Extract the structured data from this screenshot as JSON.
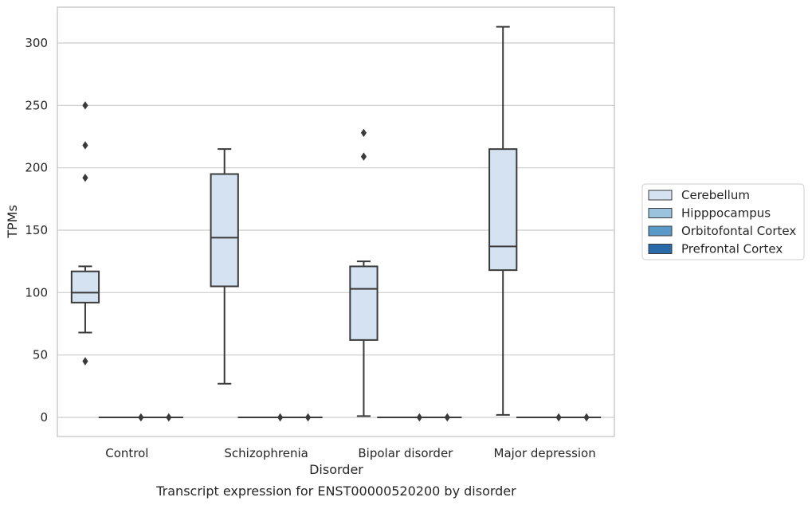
{
  "chart_data": {
    "type": "box",
    "caption": "Transcript expression for ENST00000520200 by disorder",
    "xlabel": "Disorder",
    "ylabel": "TPMs",
    "ylim": [
      -15,
      330
    ],
    "yticks": [
      0,
      50,
      100,
      150,
      200,
      250,
      300
    ],
    "grid": "horizontal",
    "legend_position": "right",
    "categories": [
      "Control",
      "Schizophrenia",
      "Bipolar disorder",
      "Major depression"
    ],
    "series": [
      {
        "name": "Cerebellum",
        "color": "#d4e2f1",
        "boxes": [
          {
            "whisker_low": 68,
            "q1": 92,
            "median": 100,
            "q3": 117,
            "whisker_high": 121,
            "outliers": [
              45,
              192,
              218,
              250
            ]
          },
          {
            "whisker_low": 27,
            "q1": 105,
            "median": 144,
            "q3": 195,
            "whisker_high": 215,
            "outliers": []
          },
          {
            "whisker_low": 1,
            "q1": 62,
            "median": 103,
            "q3": 121,
            "whisker_high": 125,
            "outliers": [
              209,
              228
            ]
          },
          {
            "whisker_low": 2,
            "q1": 118,
            "median": 137,
            "q3": 215,
            "whisker_high": 313,
            "outliers": []
          }
        ]
      },
      {
        "name": "Hipppocampus",
        "color": "#9ac3de",
        "boxes": [
          {
            "whisker_low": 0,
            "q1": 0,
            "median": 0,
            "q3": 0,
            "whisker_high": 0,
            "outliers": []
          },
          {
            "whisker_low": 0,
            "q1": 0,
            "median": 0,
            "q3": 0,
            "whisker_high": 0,
            "outliers": []
          },
          {
            "whisker_low": 0,
            "q1": 0,
            "median": 0,
            "q3": 0,
            "whisker_high": 0,
            "outliers": []
          },
          {
            "whisker_low": 0,
            "q1": 0,
            "median": 0,
            "q3": 0,
            "whisker_high": 0,
            "outliers": []
          }
        ]
      },
      {
        "name": "Orbitofontal Cortex",
        "color": "#5a9ac9",
        "boxes": [
          {
            "whisker_low": 0,
            "q1": 0,
            "median": 0,
            "q3": 0,
            "whisker_high": 0,
            "outliers": [
              0
            ]
          },
          {
            "whisker_low": 0,
            "q1": 0,
            "median": 0,
            "q3": 0,
            "whisker_high": 0,
            "outliers": [
              0
            ]
          },
          {
            "whisker_low": 0,
            "q1": 0,
            "median": 0,
            "q3": 0,
            "whisker_high": 0,
            "outliers": [
              0
            ]
          },
          {
            "whisker_low": 0,
            "q1": 0,
            "median": 0,
            "q3": 0,
            "whisker_high": 0,
            "outliers": [
              0
            ]
          }
        ]
      },
      {
        "name": "Prefrontal Cortex",
        "color": "#2b6aa8",
        "boxes": [
          {
            "whisker_low": 0,
            "q1": 0,
            "median": 0,
            "q3": 0,
            "whisker_high": 0,
            "outliers": [
              0
            ]
          },
          {
            "whisker_low": 0,
            "q1": 0,
            "median": 0,
            "q3": 0,
            "whisker_high": 0,
            "outliers": [
              0
            ]
          },
          {
            "whisker_low": 0,
            "q1": 0,
            "median": 0,
            "q3": 0,
            "whisker_high": 0,
            "outliers": [
              0
            ]
          },
          {
            "whisker_low": 0,
            "q1": 0,
            "median": 0,
            "q3": 0,
            "whisker_high": 0,
            "outliers": [
              0
            ]
          }
        ]
      }
    ]
  }
}
